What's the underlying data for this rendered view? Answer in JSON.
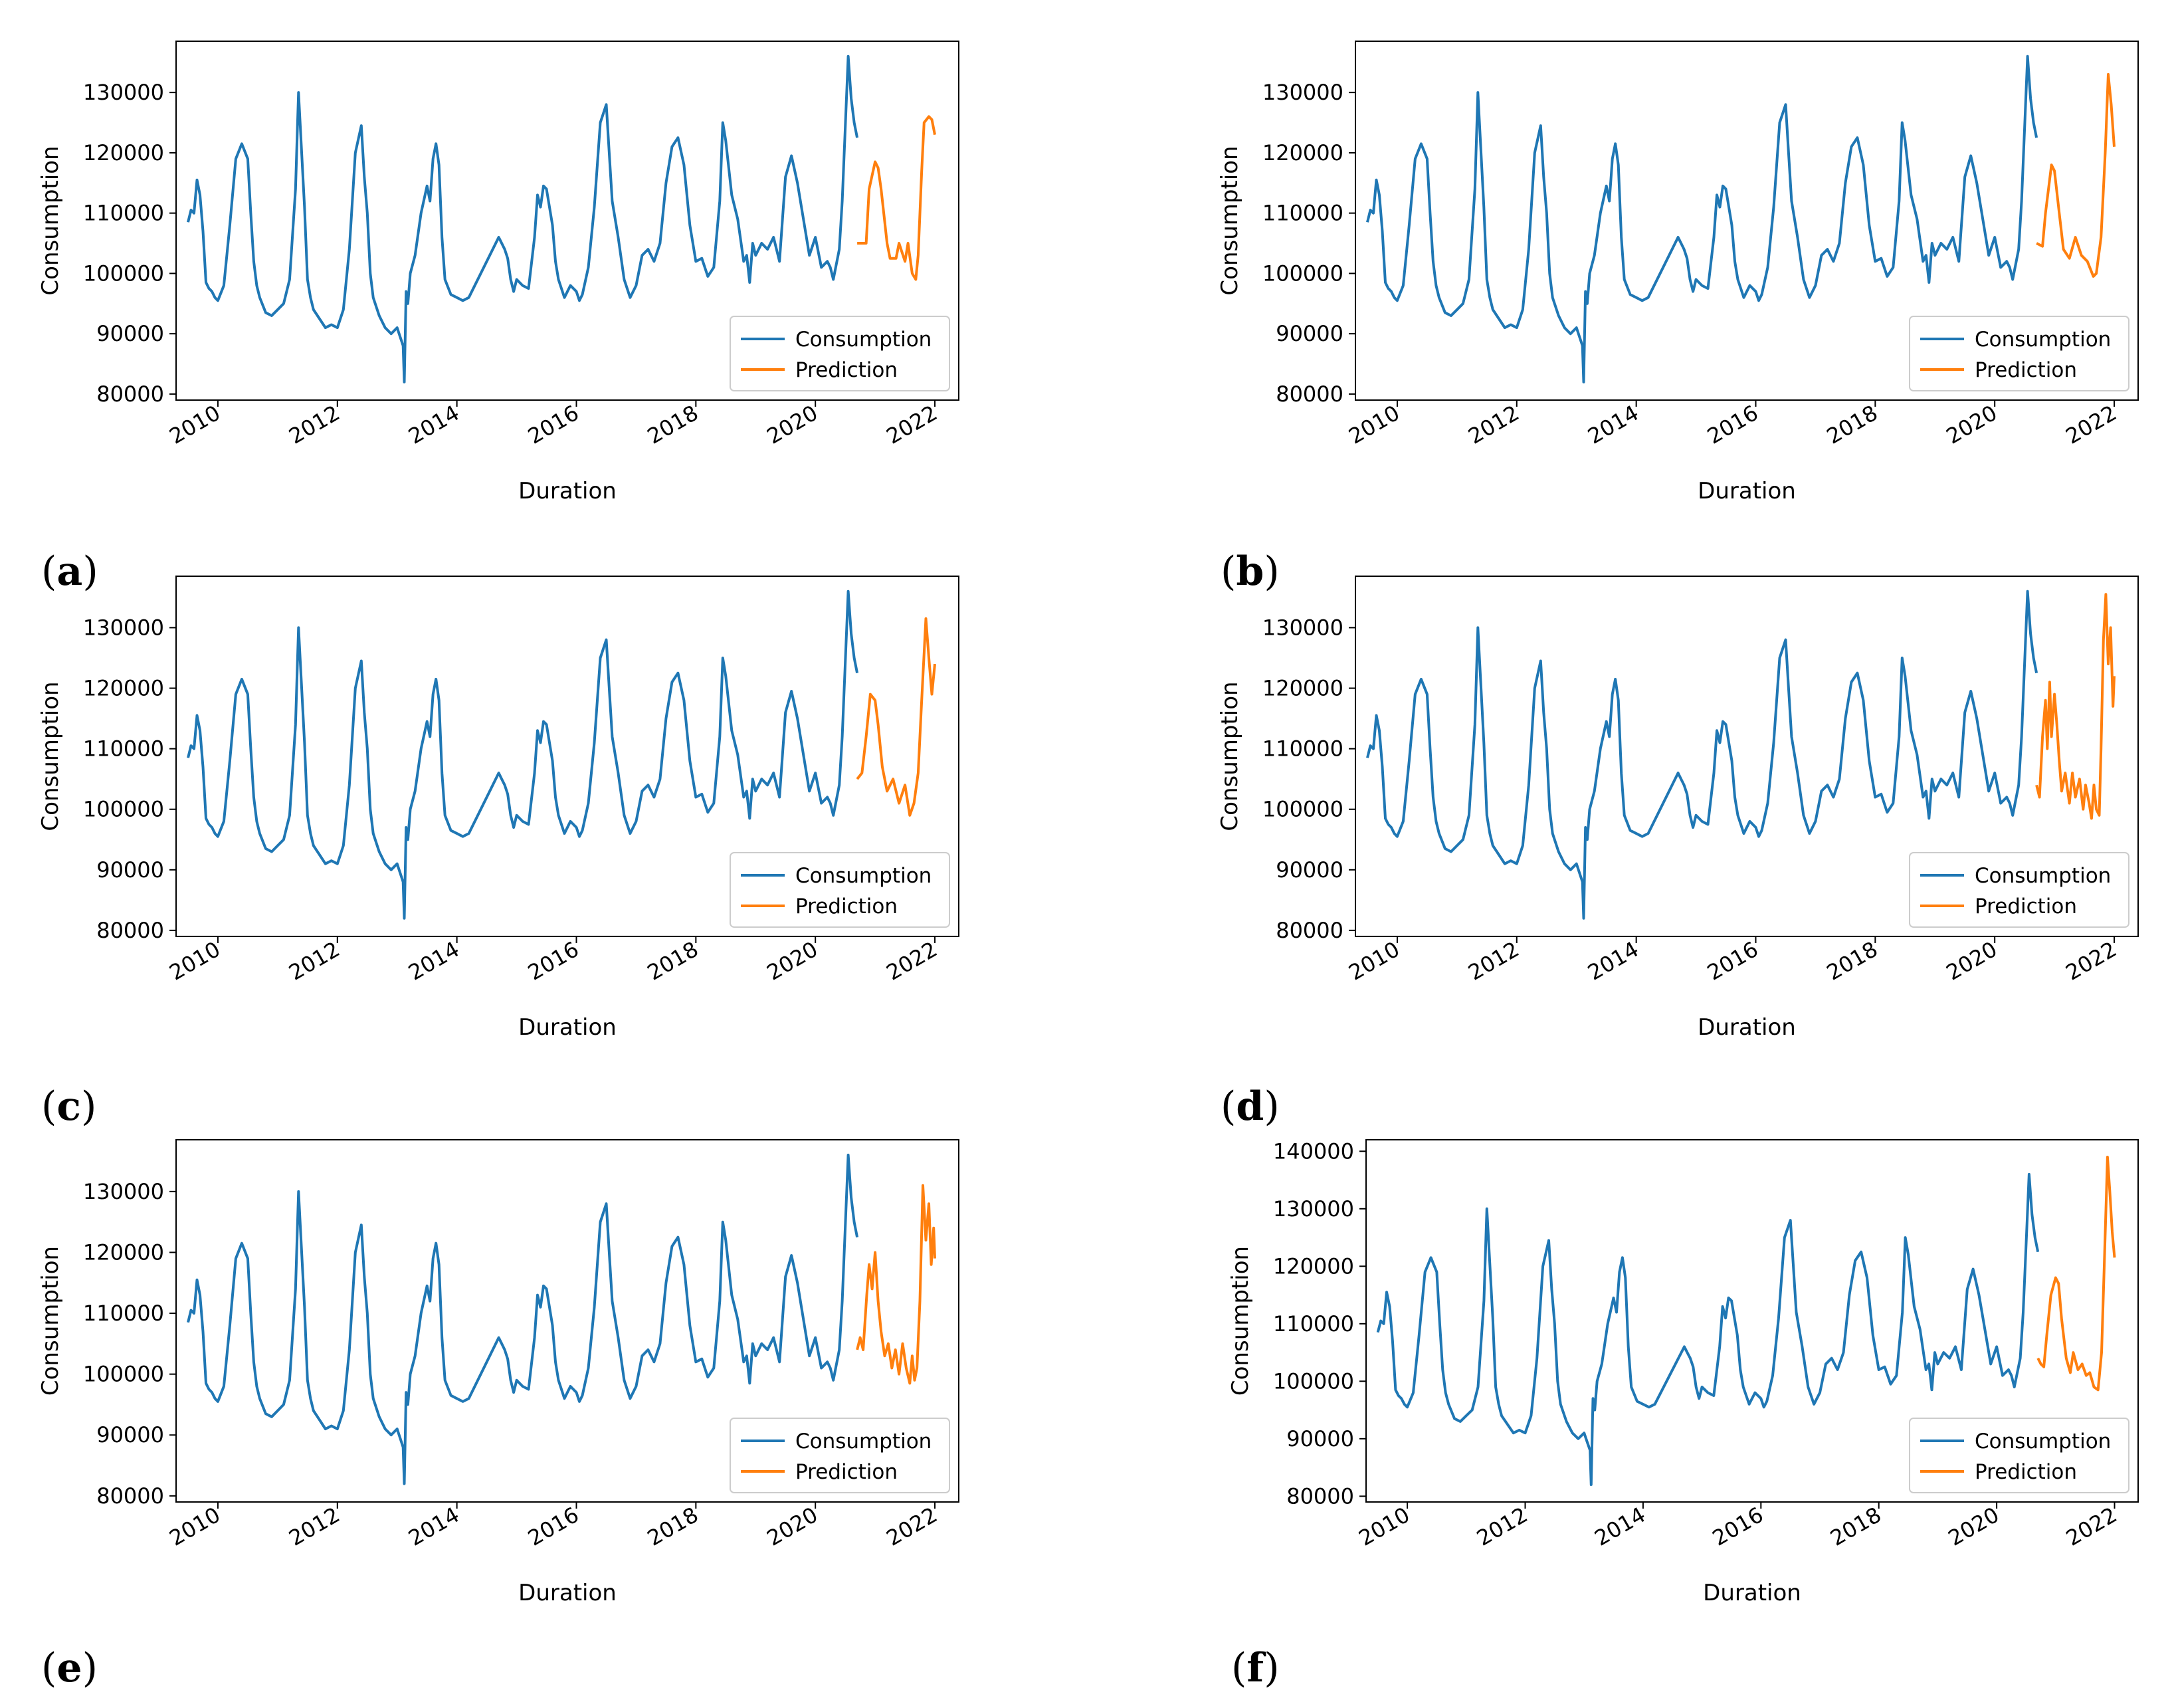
{
  "figure": {
    "series_names": [
      "Consumption",
      "Prediction"
    ],
    "colors": {
      "Consumption": "#1f77b4",
      "Prediction": "#ff7f0e"
    }
  },
  "chart_data": [
    {
      "panel": "a",
      "type": "line",
      "title": "",
      "xlabel": "Duration",
      "ylabel": "Consumption",
      "xlim": [
        2009.3,
        2022.4
      ],
      "ylim": [
        79000,
        138500
      ],
      "xticks": [
        "2010",
        "2012",
        "2014",
        "2016",
        "2018",
        "2020",
        "2022"
      ],
      "yticks": [
        "80000",
        "90000",
        "100000",
        "110000",
        "120000",
        "130000"
      ],
      "legend": "lower-right",
      "prediction": {
        "name": "Prediction",
        "x": [
          2020.7,
          2020.85,
          2020.9,
          2021.0,
          2021.05,
          2021.1,
          2021.2,
          2021.25,
          2021.35,
          2021.4,
          2021.5,
          2021.55,
          2021.62,
          2021.68,
          2021.72,
          2021.78,
          2021.82,
          2021.9,
          2021.95,
          2022.0
        ],
        "y": [
          105000,
          105000,
          114000,
          118500,
          117500,
          114000,
          105000,
          102500,
          102500,
          105000,
          102000,
          105000,
          100000,
          99000,
          103000,
          117000,
          125000,
          126000,
          125500,
          123000
        ]
      }
    },
    {
      "panel": "b",
      "type": "line",
      "title": "",
      "xlabel": "Duration",
      "ylabel": "Consumption",
      "xlim": [
        2009.3,
        2022.4
      ],
      "ylim": [
        79000,
        138500
      ],
      "xticks": [
        "2010",
        "2012",
        "2014",
        "2016",
        "2018",
        "2020",
        "2022"
      ],
      "yticks": [
        "80000",
        "90000",
        "100000",
        "110000",
        "120000",
        "130000"
      ],
      "legend": "lower-right",
      "prediction": {
        "name": "Prediction",
        "x": [
          2020.7,
          2020.8,
          2020.85,
          2020.95,
          2021.0,
          2021.08,
          2021.15,
          2021.25,
          2021.35,
          2021.45,
          2021.55,
          2021.65,
          2021.7,
          2021.78,
          2021.85,
          2021.9,
          2021.95,
          2022.0
        ],
        "y": [
          105000,
          104500,
          110000,
          118000,
          117000,
          110000,
          104000,
          102500,
          106000,
          103000,
          102000,
          99500,
          100000,
          106000,
          120000,
          133000,
          128000,
          121000
        ]
      }
    },
    {
      "panel": "c",
      "type": "line",
      "title": "",
      "xlabel": "Duration",
      "ylabel": "Consumption",
      "xlim": [
        2009.3,
        2022.4
      ],
      "ylim": [
        79000,
        138500
      ],
      "xticks": [
        "2010",
        "2012",
        "2014",
        "2016",
        "2018",
        "2020",
        "2022"
      ],
      "yticks": [
        "80000",
        "90000",
        "100000",
        "110000",
        "120000",
        "130000"
      ],
      "legend": "lower-right",
      "prediction": {
        "name": "Prediction",
        "x": [
          2020.7,
          2020.78,
          2020.85,
          2020.92,
          2021.0,
          2021.05,
          2021.12,
          2021.2,
          2021.3,
          2021.4,
          2021.5,
          2021.58,
          2021.65,
          2021.72,
          2021.78,
          2021.85,
          2021.9,
          2021.95,
          2022.0
        ],
        "y": [
          105000,
          106000,
          112000,
          119000,
          118000,
          114000,
          107000,
          103000,
          105000,
          101000,
          104000,
          99000,
          101000,
          106000,
          118000,
          131500,
          125000,
          119000,
          124000
        ]
      }
    },
    {
      "panel": "d",
      "type": "line",
      "title": "",
      "xlabel": "Duration",
      "ylabel": "Consumption",
      "xlim": [
        2009.3,
        2022.4
      ],
      "ylim": [
        79000,
        138500
      ],
      "xticks": [
        "2010",
        "2012",
        "2014",
        "2016",
        "2018",
        "2020",
        "2022"
      ],
      "yticks": [
        "80000",
        "90000",
        "100000",
        "110000",
        "120000",
        "130000"
      ],
      "legend": "lower-right",
      "prediction": {
        "name": "Prediction",
        "x": [
          2020.7,
          2020.75,
          2020.8,
          2020.85,
          2020.88,
          2020.92,
          2020.95,
          2021.0,
          2021.04,
          2021.08,
          2021.12,
          2021.18,
          2021.25,
          2021.3,
          2021.35,
          2021.42,
          2021.48,
          2021.52,
          2021.58,
          2021.62,
          2021.66,
          2021.7,
          2021.75,
          2021.78,
          2021.82,
          2021.86,
          2021.9,
          2021.94,
          2021.98,
          2022.0
        ],
        "y": [
          104000,
          102000,
          112000,
          118000,
          110000,
          121000,
          112000,
          119000,
          114000,
          108000,
          103000,
          106000,
          101000,
          106000,
          102000,
          105000,
          100000,
          104000,
          101000,
          98500,
          104000,
          100000,
          99000,
          110000,
          128000,
          135500,
          124000,
          130000,
          117000,
          122000
        ]
      }
    },
    {
      "panel": "e",
      "type": "line",
      "title": "",
      "xlabel": "Duration",
      "ylabel": "Consumption",
      "xlim": [
        2009.3,
        2022.4
      ],
      "ylim": [
        79000,
        138500
      ],
      "xticks": [
        "2010",
        "2012",
        "2014",
        "2016",
        "2018",
        "2020",
        "2022"
      ],
      "yticks": [
        "80000",
        "90000",
        "100000",
        "110000",
        "120000",
        "130000"
      ],
      "legend": "lower-right",
      "prediction": {
        "name": "Prediction",
        "x": [
          2020.7,
          2020.75,
          2020.8,
          2020.86,
          2020.9,
          2020.95,
          2021.0,
          2021.05,
          2021.1,
          2021.16,
          2021.22,
          2021.28,
          2021.34,
          2021.4,
          2021.46,
          2021.52,
          2021.58,
          2021.62,
          2021.66,
          2021.7,
          2021.75,
          2021.8,
          2021.85,
          2021.9,
          2021.94,
          2021.98,
          2022.0
        ],
        "y": [
          104000,
          106000,
          104000,
          113000,
          118000,
          114000,
          120000,
          112000,
          107000,
          103000,
          105000,
          101000,
          104000,
          100000,
          105000,
          101000,
          98500,
          103000,
          99000,
          101000,
          112000,
          131000,
          122000,
          128000,
          118000,
          124000,
          119000
        ]
      }
    },
    {
      "panel": "f",
      "type": "line",
      "title": "",
      "xlabel": "Duration",
      "ylabel": "Consumption",
      "xlim": [
        2009.3,
        2022.4
      ],
      "ylim": [
        79000,
        142000
      ],
      "xticks": [
        "2010",
        "2012",
        "2014",
        "2016",
        "2018",
        "2020",
        "2022"
      ],
      "yticks": [
        "80000",
        "90000",
        "100000",
        "110000",
        "120000",
        "130000",
        "140000"
      ],
      "legend": "lower-right",
      "prediction": {
        "name": "Prediction",
        "x": [
          2020.7,
          2020.75,
          2020.8,
          2020.85,
          2020.92,
          2021.0,
          2021.05,
          2021.1,
          2021.18,
          2021.25,
          2021.3,
          2021.38,
          2021.45,
          2021.52,
          2021.58,
          2021.65,
          2021.72,
          2021.78,
          2021.84,
          2021.88,
          2021.92,
          2021.96,
          2022.0
        ],
        "y": [
          104000,
          103000,
          102500,
          108000,
          115000,
          118000,
          117000,
          111000,
          104000,
          101500,
          105000,
          102000,
          103000,
          101000,
          101500,
          99000,
          98500,
          105000,
          125000,
          139000,
          133000,
          126000,
          121500
        ]
      }
    }
  ],
  "consumption": {
    "name": "Consumption",
    "x": [
      2009.5,
      2009.55,
      2009.6,
      2009.65,
      2009.7,
      2009.75,
      2009.8,
      2009.85,
      2009.9,
      2009.95,
      2010.0,
      2010.1,
      2010.2,
      2010.3,
      2010.4,
      2010.5,
      2010.55,
      2010.6,
      2010.65,
      2010.7,
      2010.8,
      2010.9,
      2011.0,
      2011.1,
      2011.2,
      2011.3,
      2011.35,
      2011.45,
      2011.5,
      2011.55,
      2011.6,
      2011.7,
      2011.8,
      2011.9,
      2012.0,
      2012.1,
      2012.2,
      2012.3,
      2012.4,
      2012.45,
      2012.5,
      2012.55,
      2012.6,
      2012.7,
      2012.8,
      2012.9,
      2013.0,
      2013.05,
      2013.1,
      2013.12,
      2013.15,
      2013.18,
      2013.22,
      2013.3,
      2013.4,
      2013.5,
      2013.55,
      2013.6,
      2013.65,
      2013.7,
      2013.75,
      2013.8,
      2013.9,
      2014.0,
      2014.1,
      2014.2,
      2014.7,
      2014.75,
      2014.8,
      2014.85,
      2014.9,
      2014.95,
      2015.0,
      2015.1,
      2015.2,
      2015.3,
      2015.35,
      2015.4,
      2015.45,
      2015.5,
      2015.6,
      2015.65,
      2015.7,
      2015.8,
      2015.9,
      2016.0,
      2016.05,
      2016.1,
      2016.2,
      2016.3,
      2016.4,
      2016.5,
      2016.55,
      2016.6,
      2016.7,
      2016.8,
      2016.9,
      2017.0,
      2017.1,
      2017.2,
      2017.3,
      2017.4,
      2017.5,
      2017.6,
      2017.7,
      2017.8,
      2017.9,
      2018.0,
      2018.1,
      2018.2,
      2018.3,
      2018.4,
      2018.45,
      2018.5,
      2018.6,
      2018.7,
      2018.8,
      2018.85,
      2018.9,
      2018.95,
      2019.0,
      2019.1,
      2019.2,
      2019.3,
      2019.4,
      2019.5,
      2019.6,
      2019.7,
      2019.8,
      2019.9,
      2020.0,
      2020.1,
      2020.2,
      2020.25,
      2020.3,
      2020.4,
      2020.45,
      2020.5,
      2020.55,
      2020.6,
      2020.65,
      2020.7
    ],
    "y": [
      108500,
      110500,
      110000,
      115500,
      113000,
      107000,
      98500,
      97500,
      97000,
      96000,
      95500,
      98000,
      108000,
      119000,
      121500,
      119000,
      110000,
      102000,
      98000,
      96000,
      93500,
      93000,
      94000,
      95000,
      99000,
      114000,
      130000,
      111000,
      99000,
      96000,
      94000,
      92500,
      91000,
      91500,
      91000,
      94000,
      104000,
      120000,
      124500,
      116000,
      110000,
      100000,
      96000,
      93000,
      91000,
      90000,
      91000,
      89500,
      88000,
      82000,
      97000,
      95000,
      100000,
      103000,
      110000,
      114500,
      112000,
      119000,
      121500,
      118000,
      106000,
      99000,
      96500,
      96000,
      95500,
      96000,
      106000,
      105000,
      104000,
      102500,
      99000,
      97000,
      99000,
      98000,
      97500,
      106000,
      113000,
      111000,
      114500,
      114000,
      108000,
      102000,
      99000,
      96000,
      98000,
      97000,
      95500,
      96500,
      101000,
      111000,
      125000,
      128000,
      120000,
      112000,
      106000,
      99000,
      96000,
      98000,
      103000,
      104000,
      102000,
      105000,
      115000,
      121000,
      122500,
      118000,
      108000,
      102000,
      102500,
      99500,
      101000,
      112000,
      125000,
      122000,
      113000,
      109000,
      102000,
      103000,
      98500,
      105000,
      103000,
      105000,
      104000,
      106000,
      102000,
      116000,
      119500,
      115000,
      109000,
      103000,
      106000,
      101000,
      102000,
      101000,
      99000,
      104000,
      112000,
      124000,
      136000,
      129000,
      125000,
      122500
    ]
  }
}
